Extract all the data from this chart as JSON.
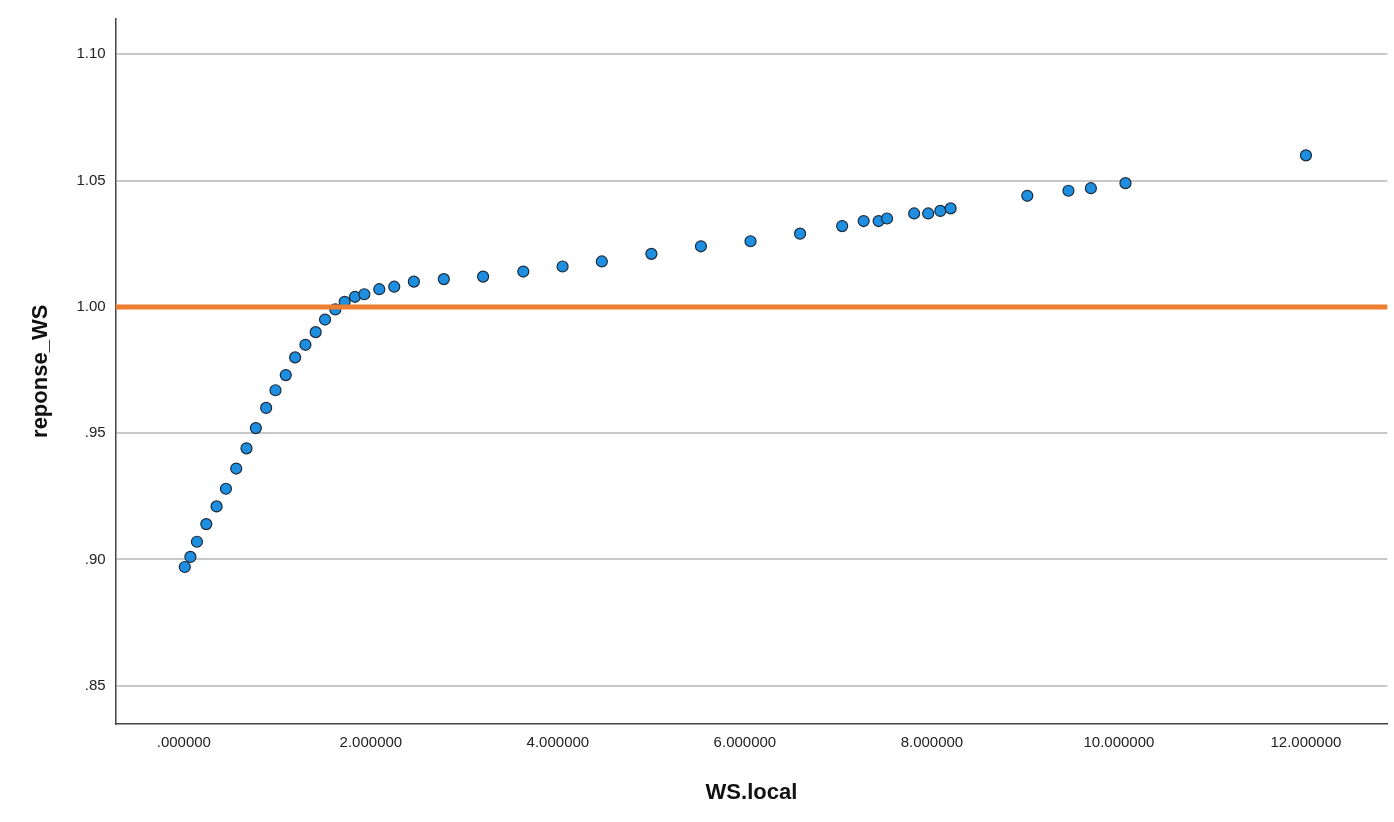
{
  "chart_data": {
    "type": "scatter",
    "xlabel": "WS.local",
    "ylabel": "reponse_WS",
    "x": [
      0.01,
      0.07,
      0.14,
      0.24,
      0.35,
      0.45,
      0.56,
      0.67,
      0.77,
      0.88,
      0.98,
      1.09,
      1.19,
      1.3,
      1.41,
      1.51,
      1.62,
      1.72,
      1.83,
      1.93,
      2.09,
      2.25,
      2.46,
      2.78,
      3.2,
      3.63,
      4.05,
      4.47,
      5.0,
      5.53,
      6.06,
      6.59,
      7.04,
      7.27,
      7.43,
      7.52,
      7.81,
      7.96,
      8.09,
      8.2,
      9.02,
      9.46,
      9.7,
      10.07,
      12.0
    ],
    "series": [
      {
        "color": "#1e8fe0",
        "values": [
          0.897,
          0.901,
          0.907,
          0.914,
          0.921,
          0.928,
          0.936,
          0.944,
          0.952,
          0.96,
          0.967,
          0.973,
          0.98,
          0.985,
          0.99,
          0.995,
          0.999,
          1.002,
          1.004,
          1.005,
          1.007,
          1.008,
          1.01,
          1.011,
          1.012,
          1.014,
          1.016,
          1.018,
          1.021,
          1.024,
          1.026,
          1.029,
          1.032,
          1.034,
          1.034,
          1.035,
          1.037,
          1.037,
          1.038,
          1.039,
          1.044,
          1.046,
          1.047,
          1.049,
          1.06
        ]
      }
    ],
    "xlim": [
      -0.73,
      12.87
    ],
    "ylim": [
      0.835,
      1.114
    ],
    "xticks": [
      {
        "value": 0,
        "label": ".000000"
      },
      {
        "value": 2,
        "label": "2.000000"
      },
      {
        "value": 4,
        "label": "4.000000"
      },
      {
        "value": 6,
        "label": "6.000000"
      },
      {
        "value": 8,
        "label": "8.000000"
      },
      {
        "value": 10,
        "label": "10.000000"
      },
      {
        "value": 12,
        "label": "12.000000"
      }
    ],
    "yticks": [
      {
        "value": 0.85,
        "label": ".85"
      },
      {
        "value": 0.9,
        "label": ".90"
      },
      {
        "value": 0.95,
        "label": ".95"
      },
      {
        "value": 1.0,
        "label": "1.00"
      },
      {
        "value": 1.05,
        "label": "1.05"
      },
      {
        "value": 1.1,
        "label": "1.10"
      }
    ],
    "ref_lines": [
      {
        "axis": "y",
        "value": 1.0,
        "color": "#ed7d31"
      }
    ],
    "grid": "y",
    "legend": false,
    "marker": "circle"
  }
}
